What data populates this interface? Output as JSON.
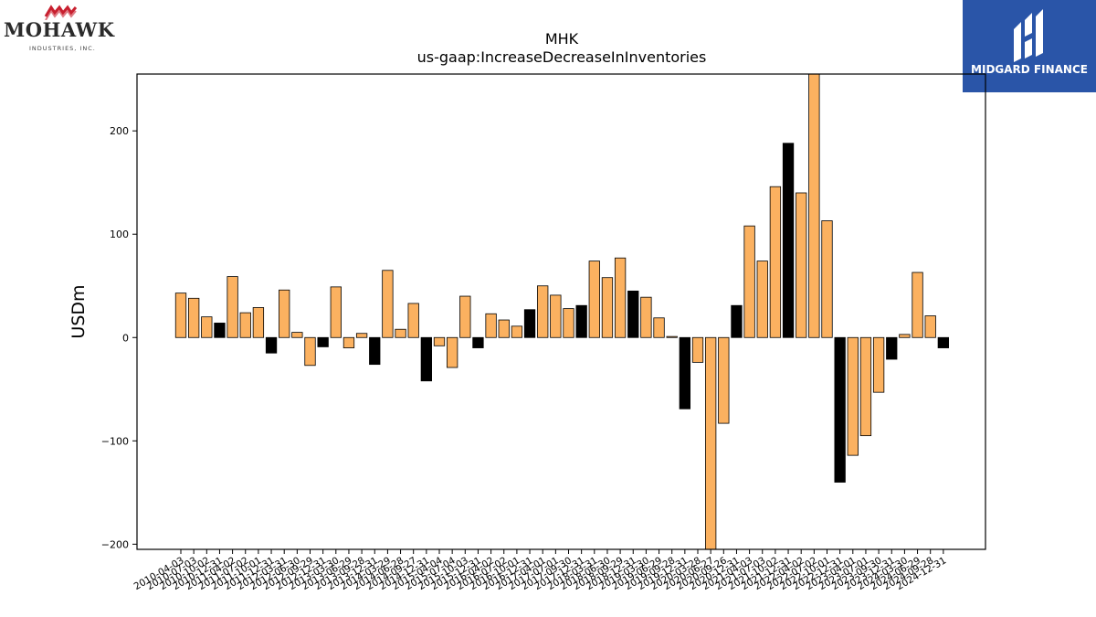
{
  "logos": {
    "left_brand": "MOHAWK",
    "left_sub": "INDUSTRIES, INC.",
    "right_brand": "MIDGARD FINANCE",
    "left_mark_color": "#c8202f",
    "right_bg_color": "#2a55a8"
  },
  "chart_data": {
    "type": "bar",
    "title": "MHK",
    "subtitle": "us-gaap:IncreaseDecreaseInInventories",
    "xlabel": "",
    "ylabel": "USDm",
    "ylim": [
      -205,
      255
    ],
    "yticks": [
      -200,
      -100,
      0,
      100,
      200
    ],
    "grid": false,
    "colors": {
      "quarter": "#fbb160",
      "annual": "#000000"
    },
    "categories": [
      "2010-04-03",
      "2010-07-03",
      "2010-10-02",
      "2010-12-31",
      "2011-04-02",
      "2011-07-02",
      "2011-10-01",
      "2011-12-31",
      "2012-03-31",
      "2012-06-30",
      "2012-09-29",
      "2012-12-31",
      "2013-03-30",
      "2013-06-29",
      "2013-09-28",
      "2013-12-31",
      "2014-03-29",
      "2014-06-28",
      "2014-09-27",
      "2014-12-31",
      "2015-04-04",
      "2015-07-04",
      "2015-10-03",
      "2015-12-31",
      "2016-04-02",
      "2016-07-02",
      "2016-10-01",
      "2016-12-31",
      "2017-04-01",
      "2017-07-01",
      "2017-09-30",
      "2017-12-31",
      "2018-03-31",
      "2018-06-30",
      "2018-09-29",
      "2018-12-31",
      "2019-03-30",
      "2019-06-29",
      "2019-09-28",
      "2019-12-31",
      "2020-03-28",
      "2020-06-27",
      "2020-09-26",
      "2020-12-31",
      "2021-04-03",
      "2021-07-03",
      "2021-10-02",
      "2021-12-31",
      "2022-04-02",
      "2022-07-02",
      "2022-10-01",
      "2022-12-31",
      "2023-04-01",
      "2023-07-01",
      "2023-09-30",
      "2023-12-31",
      "2024-03-30",
      "2024-06-29",
      "2024-09-28",
      "2024-12-31"
    ],
    "values": [
      43,
      38,
      20,
      14,
      59,
      24,
      29,
      -15,
      46,
      5,
      -27,
      -9,
      49,
      -10,
      4,
      -26,
      65,
      8,
      33,
      -42,
      -8,
      -29,
      40,
      -10,
      23,
      17,
      11,
      27,
      50,
      41,
      28,
      31,
      74,
      58,
      77,
      45,
      39,
      19,
      1,
      -69,
      -24,
      -210,
      -83,
      31,
      108,
      74,
      146,
      188,
      140,
      258,
      113,
      -140,
      -114,
      -95,
      -53,
      -21,
      3,
      63,
      21,
      -10
    ],
    "annual_flags": [
      false,
      false,
      false,
      true,
      false,
      false,
      false,
      true,
      false,
      false,
      false,
      true,
      false,
      false,
      false,
      true,
      false,
      false,
      false,
      true,
      false,
      false,
      false,
      true,
      false,
      false,
      false,
      true,
      false,
      false,
      false,
      true,
      false,
      false,
      false,
      true,
      false,
      false,
      false,
      true,
      false,
      false,
      false,
      true,
      false,
      false,
      false,
      true,
      false,
      false,
      false,
      true,
      false,
      false,
      false,
      true,
      false,
      false,
      false,
      true
    ]
  }
}
